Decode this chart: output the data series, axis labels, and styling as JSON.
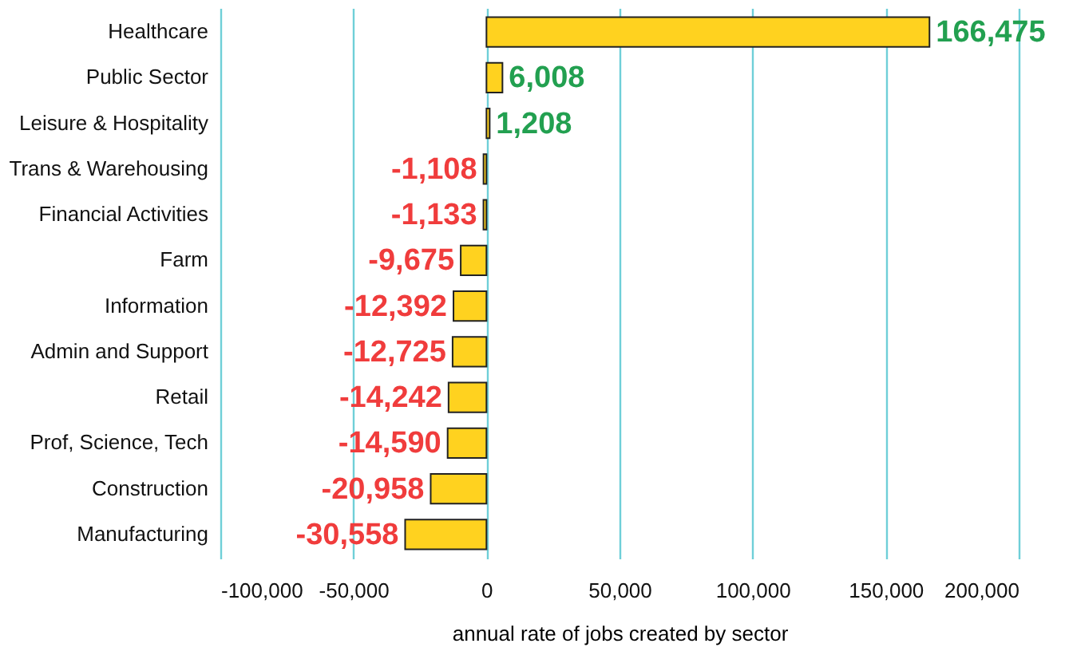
{
  "chart_data": {
    "type": "bar",
    "orientation": "horizontal",
    "xlabel": "annual rate of jobs created by sector",
    "categories": [
      "Healthcare",
      "Public Sector",
      "Leisure & Hospitality",
      "Trans & Warehousing",
      "Financial Activities",
      "Farm",
      "Information ",
      "Admin and Support",
      "Retail",
      "Prof, Science, Tech",
      "Construction",
      "Manufacturing"
    ],
    "values": [
      166475,
      6008,
      1208,
      -1108,
      -1133,
      -9675,
      -12392,
      -12725,
      -14242,
      -14590,
      -20958,
      -30558
    ],
    "value_labels": [
      "166,475",
      "6,008",
      "1,208",
      "-1,108",
      "-1,133",
      "-9,675",
      "-12,392",
      "-12,725",
      "-14,242",
      "-14,590",
      "-20,958",
      "-30,558"
    ],
    "color": "#ffd21f",
    "xlim": [
      -100000,
      200000
    ],
    "xticks": [
      {
        "value": -100000,
        "label": "-100,000"
      },
      {
        "value": -50000,
        "label": "-50,000"
      },
      0,
      {
        "value": 50000,
        "label": "50,000"
      },
      {
        "value": 100000,
        "label": "100,000"
      },
      {
        "value": 150000,
        "label": "150,000"
      },
      {
        "value": 200000,
        "label": "200,000"
      }
    ],
    "grid": "x"
  }
}
